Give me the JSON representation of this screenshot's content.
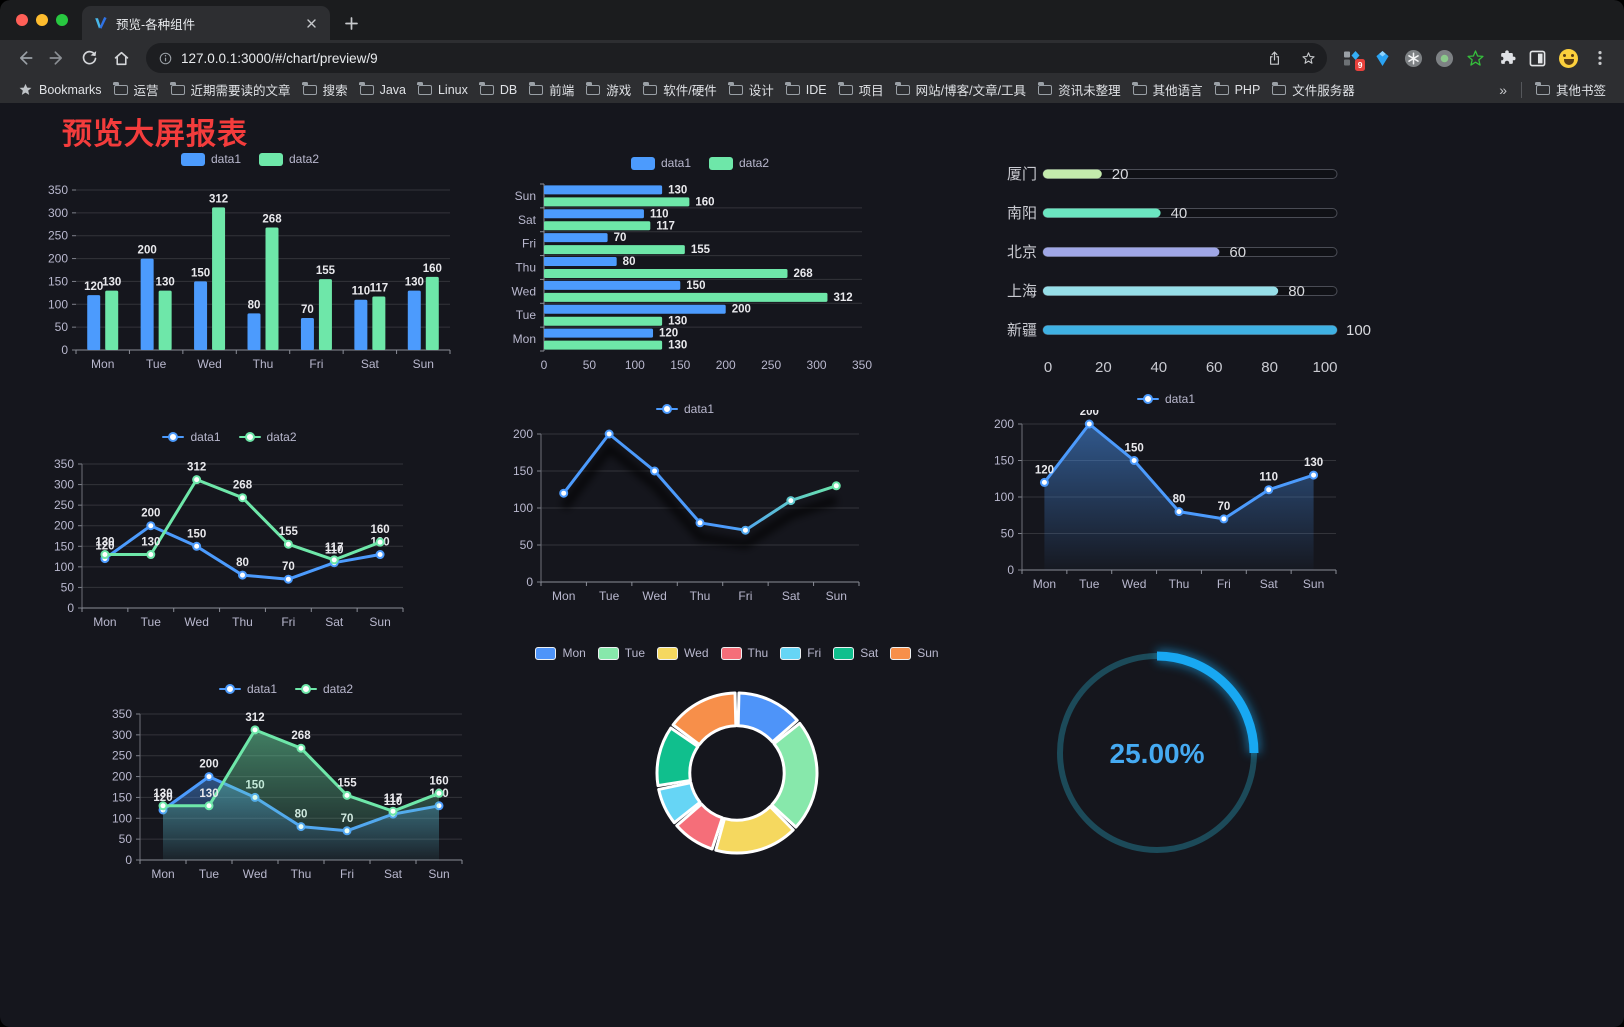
{
  "browser": {
    "tab": {
      "title": "预览-各种组件"
    },
    "url": "127.0.0.1:3000/#/chart/preview/9",
    "bookmarks_label": "Bookmarks",
    "bookmarks": [
      "运营",
      "近期需要读的文章",
      "搜索",
      "Java",
      "Linux",
      "DB",
      "前端",
      "游戏",
      "软件/硬件",
      "设计",
      "IDE",
      "项目",
      "网站/博客/文章/工具",
      "资讯未整理",
      "其他语言",
      "PHP",
      "文件服务器"
    ],
    "overflow_chevron": "»",
    "other_bookmarks": "其他书签",
    "extensions": {
      "badge": "9"
    }
  },
  "page": {
    "title": "预览大屏报表",
    "title_color": "#f43c3c"
  },
  "theme": {
    "background": "#15161d",
    "chrome": "#2d2e31",
    "frame": "#1b1c1e",
    "axis_label": "#b9b8ce",
    "grid_line": "rgba(255,255,255,0.13)",
    "value_label": "#e9e9ed",
    "traffic_lights": [
      "#ff5f57",
      "#febc2e",
      "#28c840"
    ]
  },
  "chart_data": [
    {
      "id": "grouped-bar",
      "type": "bar",
      "categories": [
        "Mon",
        "Tue",
        "Wed",
        "Thu",
        "Fri",
        "Sat",
        "Sun"
      ],
      "series": [
        {
          "name": "data1",
          "color": "#4c9bfd",
          "values": [
            120,
            200,
            150,
            80,
            70,
            110,
            130
          ]
        },
        {
          "name": "data2",
          "color": "#6ee7a9",
          "values": [
            130,
            130,
            312,
            268,
            155,
            117,
            160
          ]
        }
      ],
      "ylim": [
        0,
        350
      ],
      "yticks": [
        0,
        50,
        100,
        150,
        200,
        250,
        300,
        350
      ],
      "value_labels": true,
      "legend_position": "top",
      "grid": true
    },
    {
      "id": "horizontal-bar",
      "type": "bar",
      "orientation": "horizontal",
      "categories": [
        "Mon",
        "Tue",
        "Wed",
        "Thu",
        "Fri",
        "Sat",
        "Sun"
      ],
      "series": [
        {
          "name": "data1",
          "color": "#4c9bfd",
          "values": [
            120,
            200,
            150,
            80,
            70,
            110,
            130
          ]
        },
        {
          "name": "data2",
          "color": "#6ee7a9",
          "values": [
            130,
            130,
            312,
            268,
            155,
            117,
            160
          ]
        }
      ],
      "xlim": [
        0,
        350
      ],
      "xticks": [
        0,
        50,
        100,
        150,
        200,
        250,
        300,
        350
      ],
      "value_labels": true,
      "legend_position": "top",
      "grid": true
    },
    {
      "id": "capsule-bar",
      "type": "bar",
      "variant": "capsule",
      "categories": [
        "厦门",
        "南阳",
        "北京",
        "上海",
        "新疆"
      ],
      "values": [
        20,
        40,
        60,
        80,
        100
      ],
      "colors": [
        "#c4ebad",
        "#6be6c1",
        "#a0a7e6",
        "#96dee8",
        "#3fb1e3"
      ],
      "xlim": [
        0,
        100
      ],
      "xticks": [
        0,
        20,
        40,
        60,
        80,
        100
      ],
      "value_labels": true
    },
    {
      "id": "line-two-series",
      "type": "line",
      "categories": [
        "Mon",
        "Tue",
        "Wed",
        "Thu",
        "Fri",
        "Sat",
        "Sun"
      ],
      "series": [
        {
          "name": "data1",
          "color": "#4c9bfd",
          "values": [
            120,
            200,
            150,
            80,
            70,
            110,
            130
          ]
        },
        {
          "name": "data2",
          "color": "#6ee7a9",
          "values": [
            130,
            130,
            312,
            268,
            155,
            117,
            160
          ]
        }
      ],
      "ylim": [
        0,
        350
      ],
      "yticks": [
        0,
        50,
        100,
        150,
        200,
        250,
        300,
        350
      ],
      "value_labels": true,
      "legend_position": "top",
      "grid": true
    },
    {
      "id": "line-gradient",
      "type": "line",
      "categories": [
        "Mon",
        "Tue",
        "Wed",
        "Thu",
        "Fri",
        "Sat",
        "Sun"
      ],
      "series": [
        {
          "name": "data1",
          "color_gradient": [
            "#4c9bfd",
            "#6be6a9"
          ],
          "echo": true,
          "values": [
            120,
            200,
            150,
            80,
            70,
            110,
            130
          ]
        }
      ],
      "ylim": [
        0,
        200
      ],
      "yticks": [
        0,
        50,
        100,
        150,
        200
      ],
      "value_labels": false,
      "legend_position": "top",
      "grid": true
    },
    {
      "id": "area-single",
      "type": "line",
      "categories": [
        "Mon",
        "Tue",
        "Wed",
        "Thu",
        "Fri",
        "Sat",
        "Sun"
      ],
      "series": [
        {
          "name": "data1",
          "color": "#4c9bfd",
          "area": [
            "rgba(76,155,253,0.50)",
            "rgba(76,155,253,0.02)"
          ],
          "values": [
            120,
            200,
            150,
            80,
            70,
            110,
            130
          ]
        }
      ],
      "ylim": [
        0,
        200
      ],
      "yticks": [
        0,
        50,
        100,
        150,
        200
      ],
      "value_labels": true,
      "legend_position": "top",
      "grid": true
    },
    {
      "id": "area-two-series",
      "type": "line",
      "categories": [
        "Mon",
        "Tue",
        "Wed",
        "Thu",
        "Fri",
        "Sat",
        "Sun"
      ],
      "series": [
        {
          "name": "data1",
          "color": "#4c9bfd",
          "area": [
            "rgba(76,155,253,0.45)",
            "rgba(76,155,253,0.03)"
          ],
          "values": [
            120,
            200,
            150,
            80,
            70,
            110,
            130
          ]
        },
        {
          "name": "data2",
          "color": "#6ee7a9",
          "area": [
            "rgba(110,231,169,0.50)",
            "rgba(110,231,169,0.04)"
          ],
          "values": [
            130,
            130,
            312,
            268,
            155,
            117,
            160
          ]
        }
      ],
      "ylim": [
        0,
        350
      ],
      "yticks": [
        0,
        50,
        100,
        150,
        200,
        250,
        300,
        350
      ],
      "value_labels": true,
      "legend_position": "top",
      "grid": true
    },
    {
      "id": "donut-pie",
      "type": "pie",
      "legend_position": "top",
      "categories": [
        "Mon",
        "Tue",
        "Wed",
        "Thu",
        "Fri",
        "Sat",
        "Sun"
      ],
      "values": [
        120,
        200,
        150,
        80,
        70,
        110,
        130
      ],
      "colors": [
        "#4e94f9",
        "#87e8ab",
        "#f5d85f",
        "#f56e79",
        "#66d5f5",
        "#10bf8d",
        "#f78f4a"
      ],
      "inner_radius_ratio": 0.59,
      "border_color": "#ffffff"
    },
    {
      "id": "gauge-progress",
      "type": "gauge",
      "label": "25.00%",
      "percent": 25,
      "color": "#18a8f2",
      "track_color": "#1c4a59",
      "text_color": "#45aaf2"
    }
  ]
}
